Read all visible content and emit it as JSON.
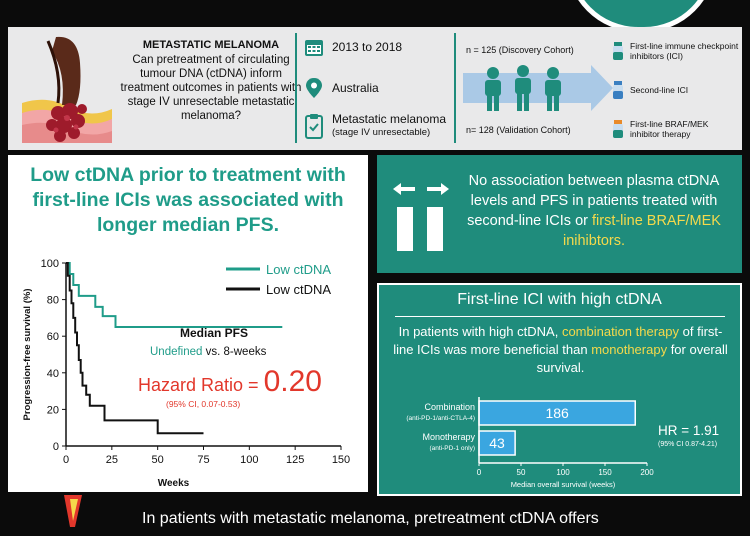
{
  "header": {
    "title": "METASTATIC MELANOMA",
    "question": "Can pretreatment of circulating tumour DNA (ctDNA) inform treatment outcomes in patients with stage IV unresectable metastatic melanoma?",
    "years": "2013 to 2018",
    "location": "Australia",
    "condition": "Metastatic melanoma",
    "condition_sub": "(stage IV unresectable)",
    "discovery": "n = 125 (Discovery Cohort)",
    "validation": "n= 128 (Validation Cohort)",
    "treatments": [
      {
        "label": "First-line immune checkpoint inhibitors (ICI)",
        "icon": "drug-vial-icon"
      },
      {
        "label": "Second-line ICI",
        "icon": "drug-vial-icon"
      },
      {
        "label": "First-line BRAF/MEK inhibitor therapy",
        "icon": "drug-vial-icon"
      }
    ],
    "colors": {
      "teal": "#1f8c7c",
      "yellow": "#f5d94b",
      "red": "#e2372b"
    }
  },
  "left": {
    "headline": "Low ctDNA prior to treatment with first-line ICIs was associated with longer median PFS.",
    "median_title": "Median PFS",
    "median_undefined": "Undefined",
    "median_vs": " vs. 8-weeks",
    "hr_label": "Hazard Ratio = ",
    "hr_value": "0.20",
    "hr_ci": "(95% CI, 0.07-0.53)"
  },
  "right_top": {
    "text_a": "No association between plasma ctDNA levels and PFS in patients treated with second-line ICIs or",
    "text_hl": "first-line BRAF/MEK inihibtors."
  },
  "right_bottom": {
    "title": "First-line ICI with high ctDNA",
    "text_a": "In patients with high ctDNA, ",
    "text_hl1": "combination therapy",
    "text_b": " of first-line ICIs was more beneficial than ",
    "text_hl2": "monotherapy",
    "text_c": " for overall survival.",
    "hr_main": "HR = 1.91",
    "hr_sub": "(95% CI 0.87-4.21)"
  },
  "bottom": {
    "text": "In patients with metastatic melanoma, pretreatment ctDNA offers"
  },
  "chart_data": [
    {
      "type": "line",
      "xlabel": "Weeks",
      "ylabel": "Progression-free survival (%)",
      "xlim": [
        0,
        150
      ],
      "ylim": [
        0,
        100
      ],
      "x_ticks": [
        0,
        25,
        50,
        75,
        100,
        125,
        150
      ],
      "y_ticks": [
        0,
        20,
        40,
        60,
        80,
        100
      ],
      "series": [
        {
          "name": "Low ctDNA",
          "color": "#1f9c89",
          "step": [
            [
              0,
              100
            ],
            [
              2,
              100
            ],
            [
              2,
              94
            ],
            [
              4,
              94
            ],
            [
              4,
              88
            ],
            [
              7,
              88
            ],
            [
              7,
              82
            ],
            [
              16,
              82
            ],
            [
              16,
              76
            ],
            [
              20,
              76
            ],
            [
              20,
              71
            ],
            [
              27,
              71
            ],
            [
              27,
              65
            ],
            [
              118,
              65
            ]
          ]
        },
        {
          "name": "Low ctDNA",
          "color": "#111111",
          "step": [
            [
              0,
              100
            ],
            [
              1,
              100
            ],
            [
              1,
              93
            ],
            [
              2,
              93
            ],
            [
              2,
              85
            ],
            [
              3,
              85
            ],
            [
              3,
              78
            ],
            [
              4,
              78
            ],
            [
              4,
              70
            ],
            [
              5,
              70
            ],
            [
              5,
              62
            ],
            [
              6,
              62
            ],
            [
              6,
              55
            ],
            [
              7,
              55
            ],
            [
              7,
              47
            ],
            [
              8,
              47
            ],
            [
              8,
              40
            ],
            [
              9,
              40
            ],
            [
              9,
              33
            ],
            [
              11,
              33
            ],
            [
              11,
              28
            ],
            [
              13,
              28
            ],
            [
              13,
              22
            ],
            [
              21,
              22
            ],
            [
              21,
              14
            ],
            [
              50,
              14
            ],
            [
              50,
              7
            ],
            [
              75,
              7
            ]
          ]
        }
      ]
    },
    {
      "type": "bar",
      "xlabel": "Median overall survival (weeks)",
      "xlim": [
        0,
        200
      ],
      "x_ticks": [
        0,
        50,
        100,
        150,
        200
      ],
      "categories": [
        {
          "name": "Combination",
          "sub": "(anti-PD-1/anti-CTLA-4)"
        },
        {
          "name": "Monotherapy",
          "sub": "(anti-PD-1 only)"
        }
      ],
      "values": [
        186,
        43
      ]
    }
  ]
}
